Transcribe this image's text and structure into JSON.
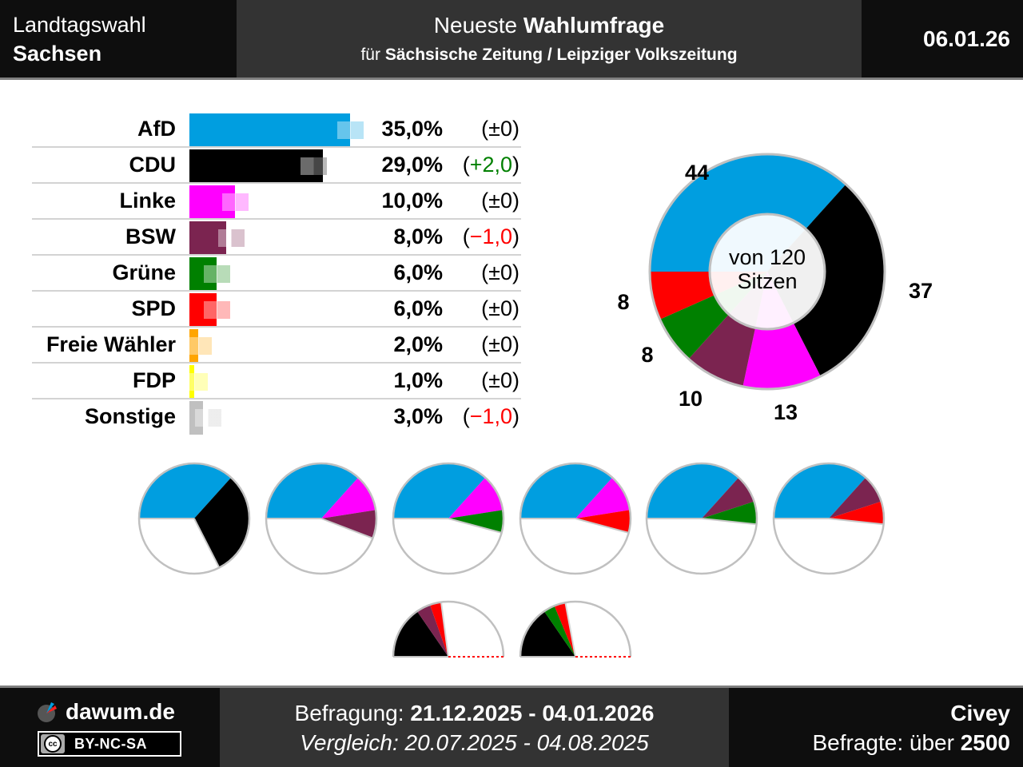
{
  "header": {
    "election_type": "Landtagswahl",
    "state": "Sachsen",
    "title_prefix": "Neueste",
    "title_bold": "Wahlumfrage",
    "subtitle_prefix": "für",
    "subtitle_bold": "Sächsische Zeitung / Leipziger Volkszeitung",
    "date": "06.01.26"
  },
  "footer": {
    "brand": "dawum.de",
    "license": "BY-NC-SA",
    "license_icon": "cc-icon",
    "survey_label": "Befragung:",
    "survey_period": "21.12.2025 - 04.01.2026",
    "compare_label": "Vergleich:",
    "compare_period": "20.07.2025 - 04.08.2025",
    "institute": "Civey",
    "respondents_label": "Befragte: über",
    "respondents_value": "2500"
  },
  "chart_data": [
    {
      "type": "bar",
      "orientation": "horizontal",
      "title": "Umfragewerte",
      "categories": [
        "AfD",
        "CDU",
        "Linke",
        "BSW",
        "Grüne",
        "SPD",
        "Freie Wähler",
        "FDP",
        "Sonstige"
      ],
      "values": [
        35.0,
        29.0,
        10.0,
        8.0,
        6.0,
        6.0,
        2.0,
        1.0,
        3.0
      ],
      "previous_values": [
        35.0,
        27.0,
        10.0,
        9.0,
        6.0,
        6.0,
        2.0,
        1.0,
        4.0
      ],
      "value_labels": [
        "35,0%",
        "29,0%",
        "10,0%",
        "8,0%",
        "6,0%",
        "6,0%",
        "2,0%",
        "1,0%",
        "3,0%"
      ],
      "diff_labels": [
        "±0",
        "+2,0",
        "±0",
        "−1,0",
        "±0",
        "±0",
        "±0",
        "±0",
        "−1,0"
      ],
      "diff_signs": [
        "zero",
        "pos",
        "zero",
        "neg",
        "zero",
        "zero",
        "zero",
        "zero",
        "neg"
      ],
      "colors": [
        "#009ee0",
        "#000000",
        "#ff00ff",
        "#7b2450",
        "#008000",
        "#ff0000",
        "#ffa500",
        "#ffff00",
        "#c0c0c0"
      ],
      "unit": "%",
      "xlim": [
        0,
        35
      ]
    },
    {
      "type": "pie",
      "subtype": "donut",
      "title": "Sitzverteilung",
      "center_label_line1": "von 120",
      "center_label_line2": "Sitzen",
      "total_seats": 120,
      "categories": [
        "AfD",
        "CDU",
        "Linke",
        "BSW",
        "Grüne",
        "SPD"
      ],
      "values": [
        44,
        37,
        13,
        10,
        8,
        8
      ],
      "colors": [
        "#009ee0",
        "#000000",
        "#ff00ff",
        "#7b2450",
        "#008000",
        "#ff0000"
      ],
      "start": "left",
      "direction": "clockwise"
    },
    {
      "type": "pie",
      "subtype": "coalitions",
      "total_seats": 120,
      "majority_seats": 61,
      "full_coalitions": [
        {
          "parties": [
            "AfD",
            "CDU"
          ],
          "seats": [
            44,
            37
          ],
          "colors": [
            "#009ee0",
            "#000000"
          ]
        },
        {
          "parties": [
            "AfD",
            "Linke",
            "BSW"
          ],
          "seats": [
            44,
            13,
            10
          ],
          "colors": [
            "#009ee0",
            "#ff00ff",
            "#7b2450"
          ]
        },
        {
          "parties": [
            "AfD",
            "Linke",
            "Grüne"
          ],
          "seats": [
            44,
            13,
            8
          ],
          "colors": [
            "#009ee0",
            "#ff00ff",
            "#008000"
          ]
        },
        {
          "parties": [
            "AfD",
            "Linke",
            "SPD"
          ],
          "seats": [
            44,
            13,
            8
          ],
          "colors": [
            "#009ee0",
            "#ff00ff",
            "#ff0000"
          ]
        },
        {
          "parties": [
            "AfD",
            "BSW",
            "Grüne"
          ],
          "seats": [
            44,
            10,
            8
          ],
          "colors": [
            "#009ee0",
            "#7b2450",
            "#008000"
          ]
        },
        {
          "parties": [
            "AfD",
            "BSW",
            "SPD"
          ],
          "seats": [
            44,
            10,
            8
          ],
          "colors": [
            "#009ee0",
            "#7b2450",
            "#ff0000"
          ]
        }
      ],
      "half_coalitions": [
        {
          "parties": [
            "CDU",
            "BSW",
            "SPD"
          ],
          "seats": [
            37,
            10,
            8
          ],
          "colors": [
            "#000000",
            "#7b2450",
            "#ff0000"
          ]
        },
        {
          "parties": [
            "CDU",
            "Grüne",
            "SPD"
          ],
          "seats": [
            37,
            8,
            8
          ],
          "colors": [
            "#000000",
            "#008000",
            "#ff0000"
          ]
        }
      ]
    }
  ]
}
